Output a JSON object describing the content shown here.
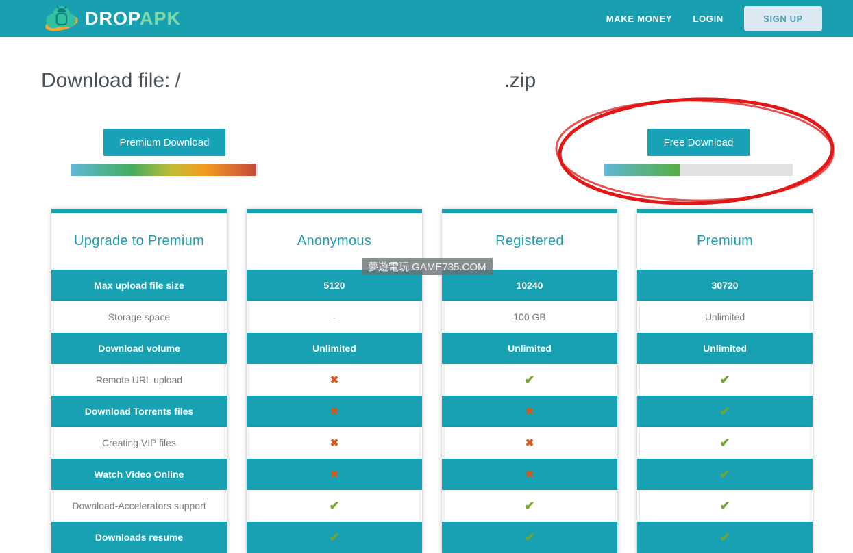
{
  "navbar": {
    "logo": {
      "text_primary": "DROP",
      "text_secondary": "APK"
    },
    "links": [
      {
        "label": "MAKE MONEY"
      },
      {
        "label": "LOGIN"
      }
    ],
    "signup_label": "SIGN UP"
  },
  "heading": {
    "prefix": "Download file:",
    "redacted_fragment": "/",
    "suffix": ".zip"
  },
  "download_options": {
    "premium": {
      "button_label": "Premium Download",
      "progress_percent": 99
    },
    "free": {
      "button_label": "Free Download",
      "progress_percent": 40
    }
  },
  "watermark": "夢遊電玩 GAME735.COM",
  "comparison": {
    "feature_column_title": "Upgrade to Premium",
    "plans": [
      "Anonymous",
      "Registered",
      "Premium"
    ],
    "rows": [
      {
        "feature": "Max upload file size",
        "style": "teal",
        "values": [
          "5120",
          "10240",
          "30720"
        ]
      },
      {
        "feature": "Storage space",
        "style": "white",
        "values": [
          "-",
          "100 GB",
          "Unlimited"
        ]
      },
      {
        "feature": "Download volume",
        "style": "teal",
        "values": [
          "Unlimited",
          "Unlimited",
          "Unlimited"
        ]
      },
      {
        "feature": "Remote URL upload",
        "style": "white",
        "values": [
          "no",
          "yes",
          "yes"
        ]
      },
      {
        "feature": "Download Torrents files",
        "style": "teal",
        "values": [
          "no",
          "no",
          "yes"
        ]
      },
      {
        "feature": "Creating VIP files",
        "style": "white",
        "values": [
          "no",
          "no",
          "yes"
        ]
      },
      {
        "feature": "Watch Video Online",
        "style": "teal",
        "values": [
          "no",
          "no",
          "yes"
        ]
      },
      {
        "feature": "Download-Accelerators support",
        "style": "white",
        "values": [
          "yes",
          "yes",
          "yes"
        ]
      },
      {
        "feature": "Downloads resume",
        "style": "teal",
        "values": [
          "yes",
          "yes",
          "yes"
        ]
      }
    ]
  },
  "colors": {
    "teal": "#18A1B2",
    "header_text": "#1B9FB5",
    "check_green": "#74A62F",
    "cross_orange": "#D4571E",
    "annotation_red": "#E41616"
  }
}
